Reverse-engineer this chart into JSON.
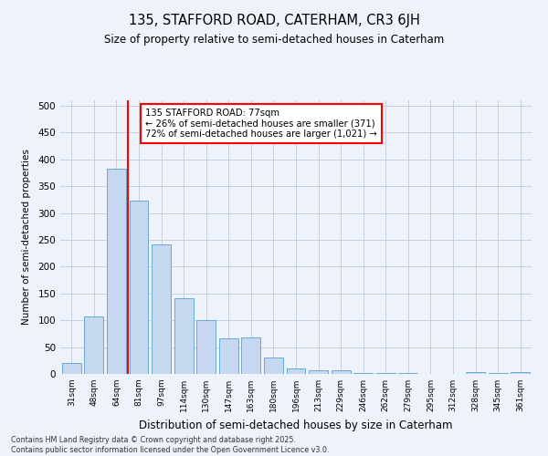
{
  "title1": "135, STAFFORD ROAD, CATERHAM, CR3 6JH",
  "title2": "Size of property relative to semi-detached houses in Caterham",
  "xlabel": "Distribution of semi-detached houses by size in Caterham",
  "ylabel": "Number of semi-detached properties",
  "categories": [
    "31sqm",
    "48sqm",
    "64sqm",
    "81sqm",
    "97sqm",
    "114sqm",
    "130sqm",
    "147sqm",
    "163sqm",
    "180sqm",
    "196sqm",
    "213sqm",
    "229sqm",
    "246sqm",
    "262sqm",
    "279sqm",
    "295sqm",
    "312sqm",
    "328sqm",
    "345sqm",
    "361sqm"
  ],
  "values": [
    20,
    107,
    383,
    323,
    241,
    141,
    101,
    67,
    68,
    30,
    10,
    6,
    6,
    1,
    1,
    1,
    0,
    0,
    3,
    1,
    4
  ],
  "bar_color": "#c5d8f0",
  "bar_edge_color": "#6aaad4",
  "vline_x_idx": 2,
  "vline_color": "red",
  "annotation_text": "135 STAFFORD ROAD: 77sqm\n← 26% of semi-detached houses are smaller (371)\n72% of semi-detached houses are larger (1,021) →",
  "ylim": [
    0,
    510
  ],
  "yticks": [
    0,
    50,
    100,
    150,
    200,
    250,
    300,
    350,
    400,
    450,
    500
  ],
  "footer": "Contains HM Land Registry data © Crown copyright and database right 2025.\nContains public sector information licensed under the Open Government Licence v3.0.",
  "bg_color": "#eef2fb",
  "grid_color": "#c5cfe0"
}
